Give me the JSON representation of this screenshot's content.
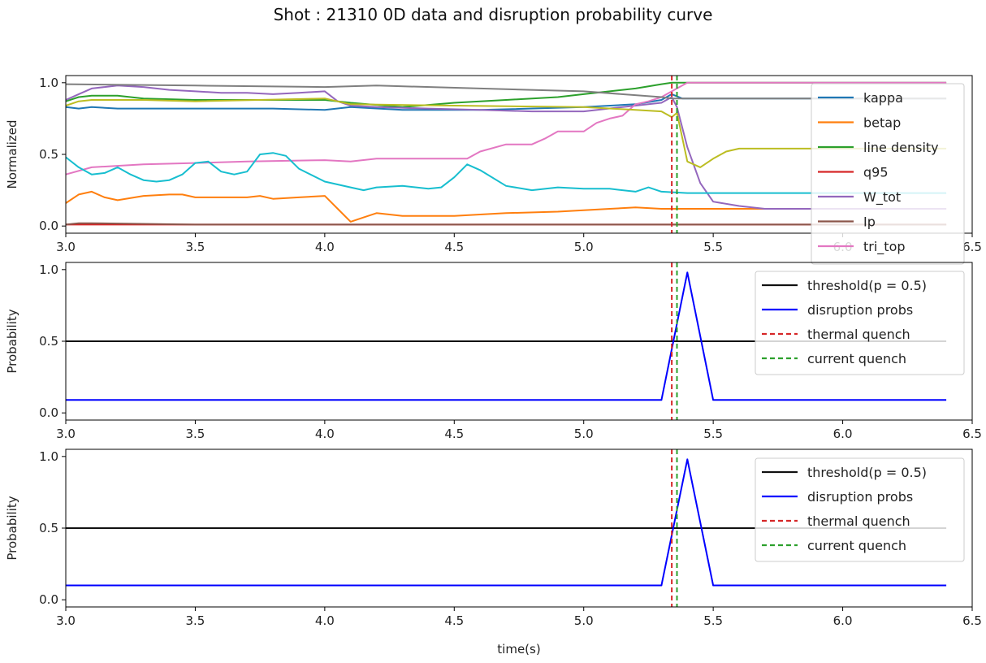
{
  "title": "Shot : 21310 0D data and disruption probability curve",
  "chart_data": [
    {
      "type": "line",
      "panel": "top",
      "ylabel": "Normalized",
      "xlim": [
        3.0,
        6.5
      ],
      "ylim": [
        -0.05,
        1.05
      ],
      "xticks": [
        "3.0",
        "3.5",
        "4.0",
        "4.5",
        "5.0",
        "5.5",
        "6.0",
        "6.5"
      ],
      "yticks": [
        "0.0",
        "0.5",
        "1.0"
      ],
      "legend_position": "top-right",
      "series": [
        {
          "name": "kappa",
          "color": "#1f77b4",
          "x": [
            3.0,
            3.05,
            3.1,
            3.2,
            3.5,
            3.8,
            4.0,
            4.1,
            4.3,
            4.6,
            5.0,
            5.2,
            5.3,
            5.34,
            5.38,
            5.5,
            6.0,
            6.4
          ],
          "y": [
            0.83,
            0.82,
            0.83,
            0.82,
            0.82,
            0.82,
            0.81,
            0.83,
            0.81,
            0.81,
            0.83,
            0.85,
            0.88,
            0.92,
            0.89,
            0.89,
            0.89,
            0.89
          ]
        },
        {
          "name": "betap",
          "color": "#ff7f0e",
          "x": [
            3.0,
            3.05,
            3.1,
            3.15,
            3.2,
            3.3,
            3.4,
            3.45,
            3.5,
            3.6,
            3.7,
            3.75,
            3.8,
            3.9,
            4.0,
            4.05,
            4.1,
            4.15,
            4.2,
            4.3,
            4.5,
            4.7,
            4.9,
            5.0,
            5.1,
            5.2,
            5.3,
            5.4,
            5.5,
            6.0,
            6.4
          ],
          "y": [
            0.16,
            0.22,
            0.24,
            0.2,
            0.18,
            0.21,
            0.22,
            0.22,
            0.2,
            0.2,
            0.2,
            0.21,
            0.19,
            0.2,
            0.21,
            0.12,
            0.03,
            0.06,
            0.09,
            0.07,
            0.07,
            0.09,
            0.1,
            0.11,
            0.12,
            0.13,
            0.12,
            0.12,
            0.12,
            0.12,
            0.12
          ]
        },
        {
          "name": "line density",
          "color": "#2ca02c",
          "x": [
            3.0,
            3.05,
            3.1,
            3.2,
            3.3,
            3.5,
            3.8,
            4.0,
            4.1,
            4.3,
            4.5,
            4.7,
            4.9,
            5.0,
            5.1,
            5.2,
            5.3,
            5.34,
            5.4,
            6.0,
            6.4
          ],
          "y": [
            0.87,
            0.9,
            0.91,
            0.91,
            0.89,
            0.88,
            0.88,
            0.88,
            0.86,
            0.83,
            0.86,
            0.88,
            0.9,
            0.92,
            0.94,
            0.96,
            0.99,
            1.0,
            1.0,
            1.0,
            1.0
          ]
        },
        {
          "name": "q95",
          "color": "#d62728",
          "x": [
            3.0,
            3.1,
            3.5,
            4.0,
            4.5,
            5.0,
            5.34,
            6.0,
            6.4
          ],
          "y": [
            0.01,
            0.01,
            0.01,
            0.01,
            0.01,
            0.01,
            0.01,
            0.01,
            0.01
          ]
        },
        {
          "name": "W_tot",
          "color": "#9467bd",
          "x": [
            3.0,
            3.05,
            3.1,
            3.15,
            3.2,
            3.3,
            3.4,
            3.5,
            3.6,
            3.7,
            3.8,
            3.9,
            4.0,
            4.05,
            4.1,
            4.2,
            4.4,
            4.6,
            4.8,
            5.0,
            5.2,
            5.3,
            5.34,
            5.36,
            5.4,
            5.45,
            5.5,
            5.6,
            5.7,
            6.0,
            6.4
          ],
          "y": [
            0.88,
            0.92,
            0.96,
            0.97,
            0.98,
            0.97,
            0.95,
            0.94,
            0.93,
            0.93,
            0.92,
            0.93,
            0.94,
            0.87,
            0.84,
            0.83,
            0.82,
            0.81,
            0.8,
            0.8,
            0.84,
            0.86,
            0.9,
            0.83,
            0.55,
            0.3,
            0.17,
            0.14,
            0.12,
            0.12,
            0.12
          ]
        },
        {
          "name": "Ip",
          "color": "#8c564b",
          "x": [
            3.0,
            3.05,
            3.1,
            3.5,
            4.0,
            4.5,
            5.0,
            5.34,
            6.0,
            6.4
          ],
          "y": [
            0.01,
            0.02,
            0.02,
            0.01,
            0.01,
            0.01,
            0.01,
            0.01,
            0.01,
            0.01
          ]
        },
        {
          "name": "tri_top",
          "color": "#e377c2",
          "x": [
            3.0,
            3.1,
            3.3,
            3.5,
            3.7,
            4.0,
            4.1,
            4.2,
            4.4,
            4.55,
            4.6,
            4.7,
            4.8,
            4.85,
            4.9,
            5.0,
            5.05,
            5.1,
            5.15,
            5.2,
            5.25,
            5.3,
            5.34,
            5.4,
            6.0,
            6.4
          ],
          "y": [
            0.36,
            0.41,
            0.43,
            0.44,
            0.45,
            0.46,
            0.45,
            0.47,
            0.47,
            0.47,
            0.52,
            0.57,
            0.57,
            0.61,
            0.66,
            0.66,
            0.72,
            0.75,
            0.77,
            0.85,
            0.87,
            0.9,
            0.94,
            1.0,
            1.0,
            1.0
          ]
        },
        {
          "name": "",
          "color": "#7f7f7f",
          "x": [
            3.0,
            3.5,
            4.0,
            4.2,
            4.6,
            5.0,
            5.3,
            5.34,
            5.4,
            6.0,
            6.4
          ],
          "y": [
            0.99,
            0.98,
            0.97,
            0.98,
            0.96,
            0.94,
            0.9,
            0.89,
            0.89,
            0.89,
            0.89
          ]
        },
        {
          "name": "",
          "color": "#bcbd22",
          "x": [
            3.0,
            3.05,
            3.1,
            3.3,
            3.5,
            4.0,
            4.1,
            4.5,
            5.0,
            5.2,
            5.3,
            5.34,
            5.36,
            5.4,
            5.45,
            5.5,
            5.55,
            5.6,
            6.0,
            6.4
          ],
          "y": [
            0.84,
            0.87,
            0.88,
            0.88,
            0.87,
            0.89,
            0.85,
            0.84,
            0.83,
            0.81,
            0.8,
            0.76,
            0.79,
            0.45,
            0.41,
            0.47,
            0.52,
            0.54,
            0.54,
            0.54
          ]
        },
        {
          "name": "",
          "color": "#17becf",
          "x": [
            3.0,
            3.05,
            3.1,
            3.15,
            3.2,
            3.25,
            3.3,
            3.35,
            3.4,
            3.45,
            3.5,
            3.55,
            3.6,
            3.65,
            3.7,
            3.75,
            3.8,
            3.85,
            3.9,
            4.0,
            4.1,
            4.15,
            4.2,
            4.3,
            4.4,
            4.45,
            4.5,
            4.55,
            4.6,
            4.7,
            4.8,
            4.9,
            5.0,
            5.1,
            5.2,
            5.25,
            5.3,
            5.4,
            6.0,
            6.4
          ],
          "y": [
            0.48,
            0.41,
            0.36,
            0.37,
            0.41,
            0.36,
            0.32,
            0.31,
            0.32,
            0.36,
            0.44,
            0.45,
            0.38,
            0.36,
            0.38,
            0.5,
            0.51,
            0.49,
            0.4,
            0.31,
            0.27,
            0.25,
            0.27,
            0.28,
            0.26,
            0.27,
            0.34,
            0.43,
            0.39,
            0.28,
            0.25,
            0.27,
            0.26,
            0.26,
            0.24,
            0.27,
            0.24,
            0.23,
            0.23,
            0.23
          ]
        }
      ],
      "vlines": [
        {
          "x": 5.34,
          "color": "#d62728"
        },
        {
          "x": 5.36,
          "color": "#2ca02c"
        }
      ]
    },
    {
      "type": "line",
      "panel": "middle",
      "ylabel": "Probability",
      "xlim": [
        3.0,
        6.5
      ],
      "ylim": [
        -0.05,
        1.05
      ],
      "xticks": [
        "3.0",
        "3.5",
        "4.0",
        "4.5",
        "5.0",
        "5.5",
        "6.0",
        "6.5"
      ],
      "yticks": [
        "0.0",
        "0.5",
        "1.0"
      ],
      "legend_position": "top-right",
      "series": [
        {
          "name": "threshold(p = 0.5)",
          "color": "#111111",
          "style": "solid",
          "x": [
            3.0,
            6.4
          ],
          "y": [
            0.5,
            0.5
          ]
        },
        {
          "name": "disruption probs",
          "color": "#0000ff",
          "style": "solid",
          "x": [
            3.0,
            5.3,
            5.4,
            5.5,
            6.4
          ],
          "y": [
            0.09,
            0.09,
            0.98,
            0.09,
            0.09
          ]
        },
        {
          "name": "thermal quench",
          "color": "#d62728",
          "style": "dashed",
          "vline": 5.34
        },
        {
          "name": "current quench",
          "color": "#2ca02c",
          "style": "dashed",
          "vline": 5.36
        }
      ]
    },
    {
      "type": "line",
      "panel": "bottom",
      "ylabel": "Probability",
      "xlabel": "time(s)",
      "xlim": [
        3.0,
        6.5
      ],
      "ylim": [
        -0.05,
        1.05
      ],
      "xticks": [
        "3.0",
        "3.5",
        "4.0",
        "4.5",
        "5.0",
        "5.5",
        "6.0",
        "6.5"
      ],
      "yticks": [
        "0.0",
        "0.5",
        "1.0"
      ],
      "legend_position": "top-right",
      "series": [
        {
          "name": "threshold(p = 0.5)",
          "color": "#111111",
          "style": "solid",
          "x": [
            3.0,
            6.4
          ],
          "y": [
            0.5,
            0.5
          ]
        },
        {
          "name": "disruption probs",
          "color": "#0000ff",
          "style": "solid",
          "x": [
            3.0,
            5.3,
            5.4,
            5.5,
            6.4
          ],
          "y": [
            0.1,
            0.1,
            0.98,
            0.1,
            0.1
          ]
        },
        {
          "name": "thermal quench",
          "color": "#d62728",
          "style": "dashed",
          "vline": 5.34
        },
        {
          "name": "current quench",
          "color": "#2ca02c",
          "style": "dashed",
          "vline": 5.36
        }
      ]
    }
  ]
}
